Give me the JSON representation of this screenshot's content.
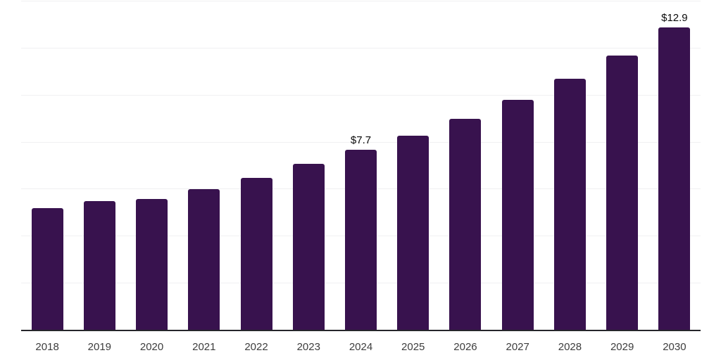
{
  "chart_data": {
    "type": "bar",
    "title": "",
    "categories": [
      "2018",
      "2019",
      "2020",
      "2021",
      "2022",
      "2023",
      "2024",
      "2025",
      "2026",
      "2027",
      "2028",
      "2029",
      "2030"
    ],
    "values": [
      5.2,
      5.5,
      5.6,
      6.0,
      6.5,
      7.1,
      7.7,
      8.3,
      9.0,
      9.8,
      10.7,
      11.7,
      12.9
    ],
    "data_labels": {
      "2024": "$7.7",
      "2030": "$12.9"
    },
    "xlabel": "",
    "ylabel": "",
    "ylim": [
      0,
      14
    ],
    "gridline_step": 2,
    "grid": "horizontal",
    "legend": "none",
    "colors": {
      "bar": "#38124E",
      "axis_line": "#26262B",
      "gridline": "#F0F0F2",
      "tick_label": "#3D3D3D",
      "data_label": "#0A0A0A",
      "background": "#FFFFFF"
    }
  }
}
